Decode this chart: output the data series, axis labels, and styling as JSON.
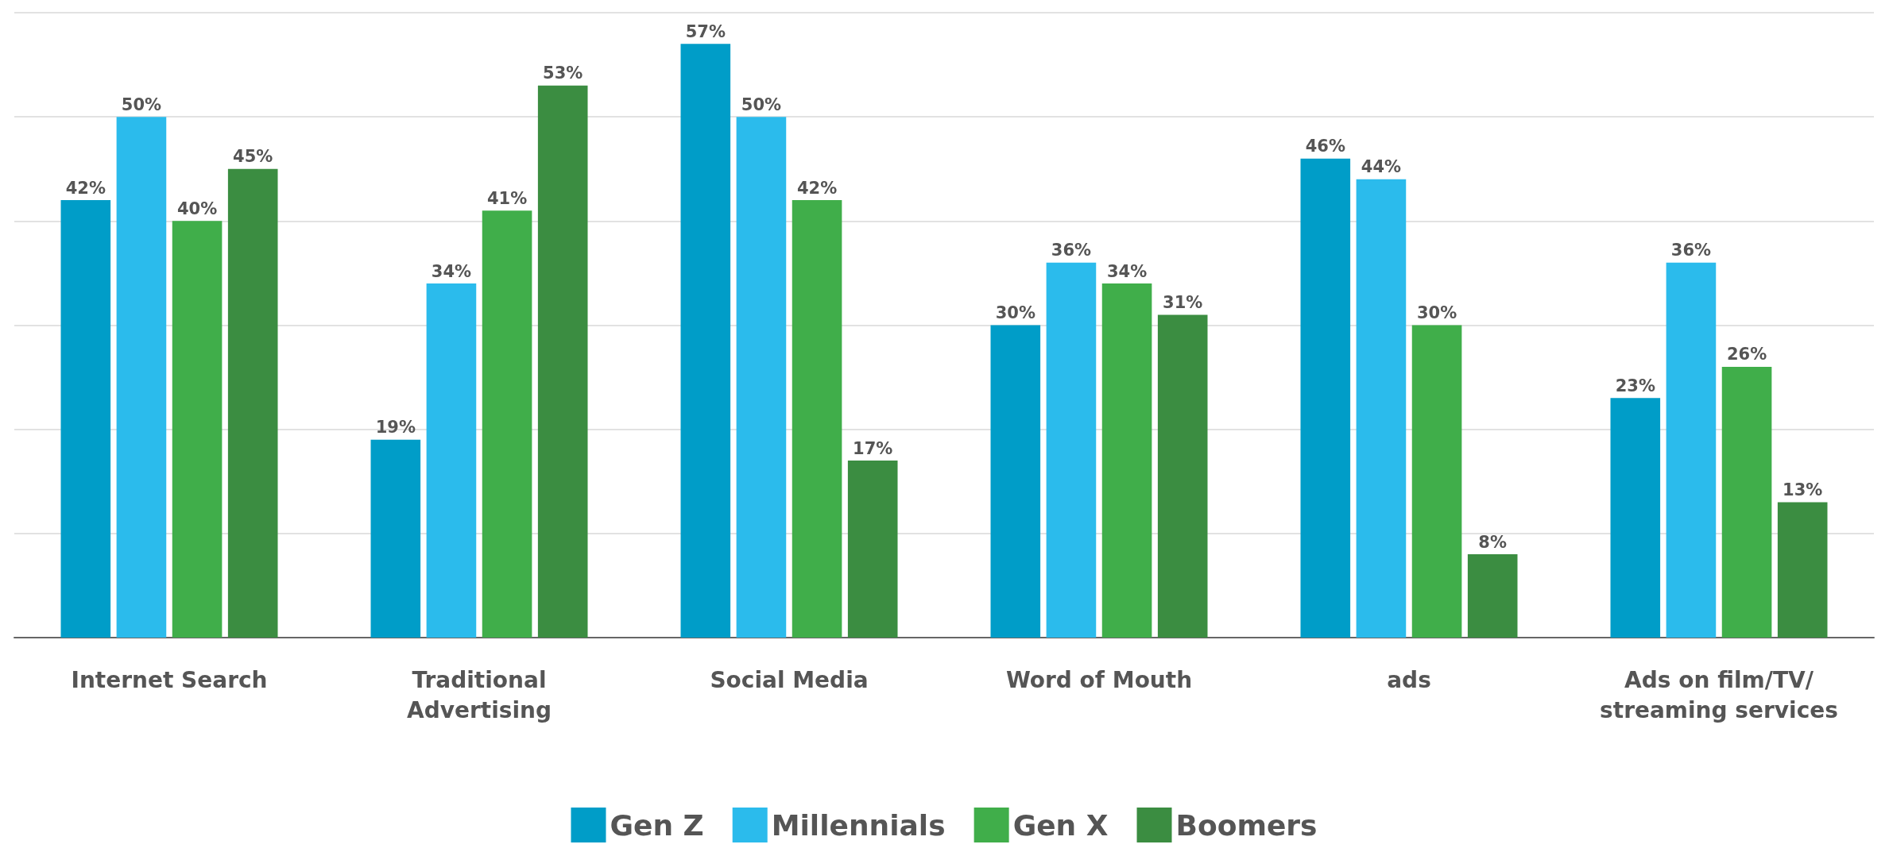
{
  "chart_data": {
    "type": "bar",
    "categories": [
      "Internet Search",
      "Traditional\nAdvertising",
      "Social Media",
      "Word of Mouth",
      "ads",
      "Ads on film/TV/\nstreaming services"
    ],
    "series": [
      {
        "name": "Gen Z",
        "color": "#009dc8",
        "values": [
          42,
          19,
          57,
          30,
          46,
          23
        ],
        "value_labels": [
          "42%",
          "19%",
          "57%",
          "30%",
          "46%",
          "23%"
        ]
      },
      {
        "name": "Millennials",
        "color": "#2bbbec",
        "values": [
          50,
          34,
          50,
          36,
          44,
          36
        ],
        "value_labels": [
          "50%",
          "34%",
          "50%",
          "36%",
          "44%",
          "36%"
        ]
      },
      {
        "name": "Gen X",
        "color": "#40ae4a",
        "values": [
          40,
          41,
          42,
          34,
          30,
          26
        ],
        "value_labels": [
          "40%",
          "41%",
          "42%",
          "34%",
          "30%",
          "26%"
        ]
      },
      {
        "name": "Boomers",
        "color": "#3b8d41",
        "values": [
          45,
          53,
          17,
          31,
          8,
          13
        ],
        "value_labels": [
          "45%",
          "53%",
          "17%",
          "31%",
          "8%",
          "13%"
        ]
      }
    ],
    "ylim": [
      0,
      60
    ],
    "yticks": [
      0,
      10,
      20,
      30,
      40,
      50,
      60
    ],
    "tick_labels": "x",
    "grid": "y",
    "legend": "bottom"
  }
}
